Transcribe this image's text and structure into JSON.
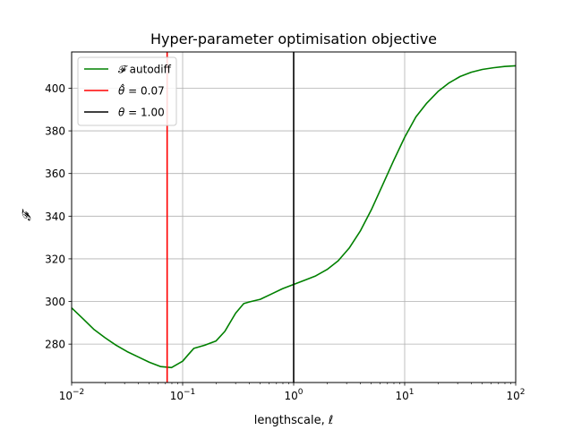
{
  "chart_data": {
    "type": "line",
    "title": "Hyper-parameter optimisation objective",
    "xlabel": "lengthscale, ℓ",
    "ylabel": "𝓕",
    "xscale": "log",
    "xlim": [
      0.01,
      100
    ],
    "ylim": [
      262,
      417
    ],
    "grid": true,
    "legend_position": "top-left",
    "x_ticks": [
      {
        "value": 0.01,
        "base": "10",
        "exp": "−2"
      },
      {
        "value": 0.1,
        "base": "10",
        "exp": "−1"
      },
      {
        "value": 1,
        "base": "10",
        "exp": "0"
      },
      {
        "value": 10,
        "base": "10",
        "exp": "1"
      },
      {
        "value": 100,
        "base": "10",
        "exp": "2"
      }
    ],
    "y_ticks": [
      "280",
      "300",
      "320",
      "340",
      "360",
      "380",
      "400"
    ],
    "series": [
      {
        "name": "𝓕 autodiff",
        "color": "#008000",
        "x": [
          0.01,
          0.0126,
          0.0158,
          0.02,
          0.0251,
          0.0316,
          0.0398,
          0.0501,
          0.0631,
          0.0794,
          0.1,
          0.112,
          0.126,
          0.158,
          0.2,
          0.24,
          0.3,
          0.355,
          0.4,
          0.5,
          0.631,
          0.794,
          1.0,
          1.26,
          1.58,
          2.0,
          2.51,
          3.16,
          3.98,
          5.01,
          6.31,
          7.94,
          10.0,
          12.6,
          15.8,
          20.0,
          25.1,
          31.6,
          39.8,
          50.1,
          63.1,
          79.4,
          100
        ],
        "y": [
          297,
          292,
          287,
          283,
          279.5,
          276.5,
          274,
          271.5,
          269.5,
          269,
          272,
          275,
          278,
          279.5,
          281.5,
          286,
          294.5,
          299,
          299.8,
          301,
          303.5,
          306,
          308,
          310,
          312,
          315,
          319,
          325,
          333,
          343,
          354.5,
          366,
          377,
          386.5,
          393,
          398.5,
          402.5,
          405.5,
          407.5,
          408.8,
          409.6,
          410.2,
          410.5
        ]
      }
    ],
    "vlines": [
      {
        "name": "θ̂ = 0.07",
        "label_sym": "θ̂",
        "label_eq": " = 0.07",
        "x": 0.0725,
        "color": "#ff0000"
      },
      {
        "name": "θ = 1.00",
        "label_sym": "θ",
        "label_eq": " = 1.00",
        "x": 1.0,
        "color": "#000000"
      }
    ]
  }
}
